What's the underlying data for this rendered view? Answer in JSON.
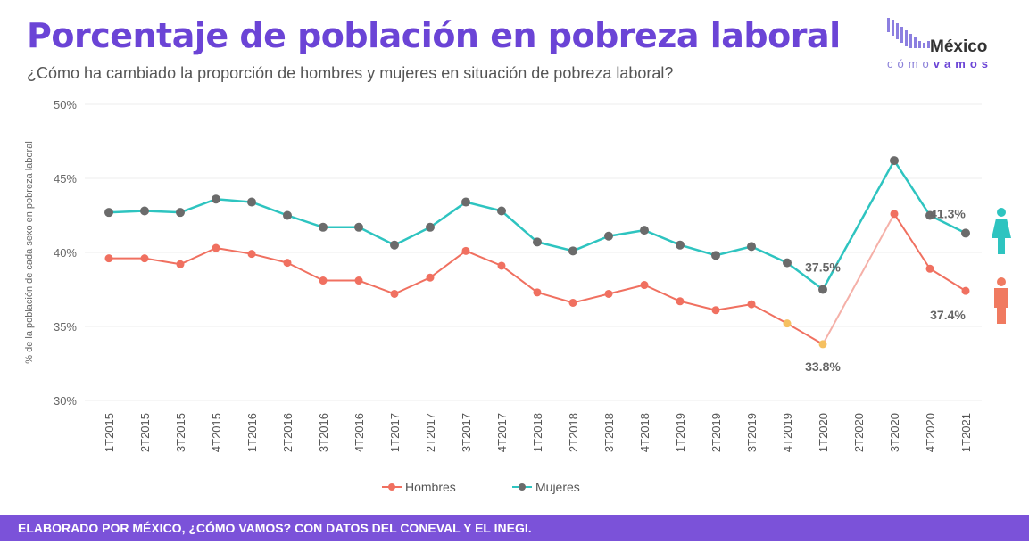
{
  "header": {
    "title": "Porcentaje de población en pobreza laboral",
    "subtitle": "¿Cómo ha cambiado la proporción de hombres y mujeres en situación de pobreza laboral?"
  },
  "logo": {
    "text_main": "México",
    "text_sub_a": "cómo",
    "text_sub_b": "vamos"
  },
  "footer": {
    "text": "ELABORADO POR MÉXICO, ¿CÓMO VAMOS? CON DATOS DEL CONEVAL Y EL INEGI."
  },
  "chart_data": {
    "type": "line",
    "title": "Porcentaje de población en pobreza laboral",
    "ylabel": "% de la población de cada sexo en pobreza laboral",
    "xlabel": "",
    "ylim": [
      30,
      50
    ],
    "yticks": [
      "30%",
      "35%",
      "40%",
      "45%",
      "50%"
    ],
    "grid": true,
    "legend": "bottom",
    "categories": [
      "1T2015",
      "2T2015",
      "3T2015",
      "4T2015",
      "1T2016",
      "2T2016",
      "3T2016",
      "4T2016",
      "1T2017",
      "2T2017",
      "3T2017",
      "4T2017",
      "1T2018",
      "2T2018",
      "3T2018",
      "4T2018",
      "1T2019",
      "2T2019",
      "3T2019",
      "4T2019",
      "1T2020",
      "2T2020",
      "3T2020",
      "4T2020",
      "1T2021"
    ],
    "series": [
      {
        "name": "Hombres",
        "color": "#f07060",
        "values": [
          39.6,
          39.6,
          39.2,
          40.3,
          39.9,
          39.3,
          38.1,
          38.1,
          37.2,
          38.3,
          40.1,
          39.1,
          37.3,
          36.6,
          37.2,
          37.8,
          36.7,
          36.1,
          36.5,
          35.2,
          33.8,
          null,
          42.6,
          38.9,
          37.4
        ],
        "highlight_color": "#f5c060",
        "highlighted": [
          "4T2019",
          "1T2020"
        ]
      },
      {
        "name": "Mujeres",
        "color": "#2ec4c0",
        "marker_color": "#6b6b6b",
        "values": [
          42.7,
          42.8,
          42.7,
          43.6,
          43.4,
          42.5,
          41.7,
          41.7,
          40.5,
          41.7,
          43.4,
          42.8,
          40.7,
          40.1,
          41.1,
          41.5,
          40.5,
          39.8,
          40.4,
          39.3,
          37.5,
          null,
          46.2,
          42.5,
          41.3
        ]
      }
    ],
    "annotations": [
      {
        "series": "Mujeres",
        "x": "1T2020",
        "text": "37.5%"
      },
      {
        "series": "Hombres",
        "x": "1T2020",
        "text": "33.8%"
      },
      {
        "series": "Mujeres",
        "x": "1T2021",
        "text": "41.3%"
      },
      {
        "series": "Hombres",
        "x": "1T2021",
        "text": "37.4%"
      }
    ]
  }
}
